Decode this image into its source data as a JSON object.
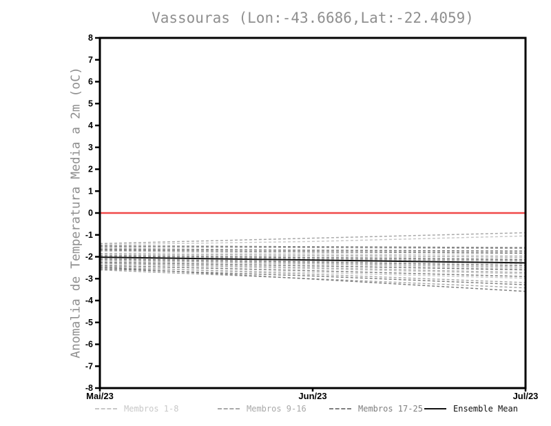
{
  "page": {
    "title": "Vassouras (Lon:-43.6686,Lat:-22.4059)"
  },
  "chart_data": {
    "type": "line",
    "title": "Vassouras (Lon:-43.6686,Lat:-22.4059)",
    "xlabel": "",
    "ylabel": "Anomalia de Temperatura Media a 2m (oC)",
    "x_ticklabels": [
      "Mai/23",
      "Jun/23",
      "Jul/23"
    ],
    "y_ticks": [
      8,
      7,
      6,
      5,
      4,
      3,
      2,
      1,
      0,
      -1,
      -2,
      -3,
      -4,
      -5,
      -6,
      -7,
      -8
    ],
    "ylim": [
      -8,
      8
    ],
    "grid": false,
    "legend_position": "bottom",
    "zero_line": {
      "y": 0,
      "color": "#f04848"
    },
    "frame_color": "#000000",
    "tick_label_color": "#000000",
    "groups": [
      {
        "name": "Membros 1-8",
        "color": "#c8c8c8",
        "style": "dashed",
        "series": [
          [
            -1.45,
            -1.3,
            -1.05
          ],
          [
            -1.6,
            -1.72,
            -1.8
          ],
          [
            -1.9,
            -2.0,
            -2.1
          ],
          [
            -2.05,
            -2.18,
            -2.32
          ],
          [
            -2.2,
            -2.35,
            -2.55
          ],
          [
            -2.35,
            -2.55,
            -2.78
          ],
          [
            -2.5,
            -2.72,
            -2.98
          ],
          [
            -1.75,
            -1.86,
            -1.95
          ]
        ]
      },
      {
        "name": "Membros 9-16",
        "color": "#a8a8a8",
        "style": "dashed",
        "series": [
          [
            -1.4,
            -1.15,
            -0.9
          ],
          [
            -1.55,
            -1.58,
            -1.62
          ],
          [
            -1.85,
            -1.93,
            -2.02
          ],
          [
            -2.0,
            -2.1,
            -2.2
          ],
          [
            -2.15,
            -2.3,
            -2.48
          ],
          [
            -2.3,
            -2.5,
            -2.72
          ],
          [
            -2.45,
            -2.8,
            -3.18
          ],
          [
            -2.6,
            -3.0,
            -3.42
          ]
        ]
      },
      {
        "name": "Membros 17-25",
        "color": "#7e7e7e",
        "style": "dashed",
        "series": [
          [
            -1.5,
            -1.54,
            -1.58
          ],
          [
            -1.7,
            -1.78,
            -1.84
          ],
          [
            -1.95,
            -2.04,
            -2.14
          ],
          [
            -2.1,
            -2.24,
            -2.4
          ],
          [
            -2.25,
            -2.42,
            -2.6
          ],
          [
            -2.4,
            -2.64,
            -2.9
          ],
          [
            -2.55,
            -2.88,
            -3.28
          ],
          [
            -2.48,
            -3.02,
            -3.58
          ],
          [
            -1.65,
            -1.7,
            -1.74
          ]
        ]
      }
    ],
    "ensemble_mean": {
      "name": "Ensemble Mean",
      "color": "#111111",
      "style": "solid",
      "values": [
        -2.02,
        -2.15,
        -2.28
      ]
    }
  }
}
